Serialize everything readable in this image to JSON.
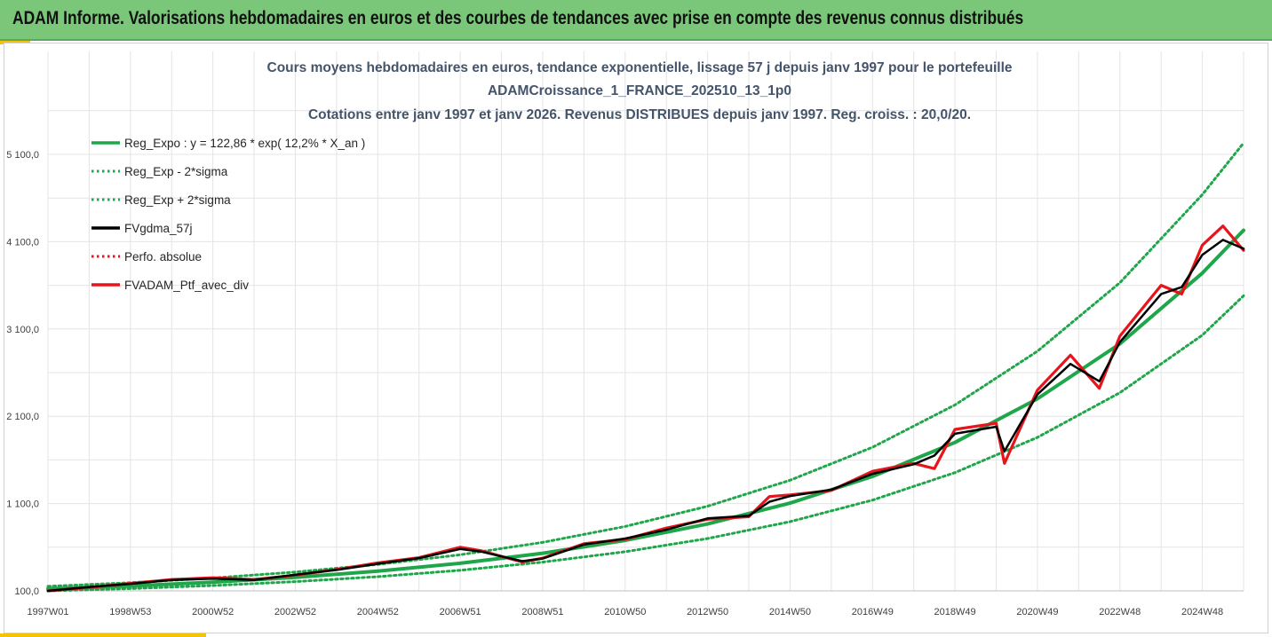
{
  "banner": {
    "title": "ADAM Informe. Valorisations hebdomadaires en euros et des courbes de tendances avec prise en compte des revenus connus distribués"
  },
  "colors": {
    "banner_bg": "#7ac77a",
    "accent": "#f5c400",
    "title_text": "#44546a",
    "trend": "#1fa64a",
    "smoothed": "#000000",
    "portfolio": "#e8141c"
  },
  "chart_data": {
    "type": "line",
    "title_lines": [
      "Cours moyens hebdomadaires  en euros, tendance exponentielle, lissage 57 j depuis janv 1997 pour le portefeuille",
      "ADAMCroissance_1_FRANCE_202510_13_1p0",
      "Cotations entre janv 1997 et janv 2026. Revenus DISTRIBUES depuis janv 1997. Reg. croiss. : 20,0/20."
    ],
    "y_ticks": [
      "100,0",
      "1 100,0",
      "2 100,0",
      "3 100,0",
      "4 100,0",
      "5 100,0"
    ],
    "y_tick_values": [
      100,
      1100,
      2100,
      3100,
      4100,
      5100
    ],
    "ylim": [
      100,
      5600
    ],
    "x_ticks": [
      "1997W01",
      "1998W53",
      "2000W52",
      "2002W52",
      "2004W52",
      "2006W51",
      "2008W51",
      "2010W50",
      "2012W50",
      "2014W50",
      "2016W49",
      "2018W49",
      "2020W49",
      "2022W48",
      "2024W48"
    ],
    "x_range_years": [
      1997.0,
      2026.0
    ],
    "grid": "vertical and horizontal",
    "legend_placement": "top-left",
    "legend": [
      {
        "label": "Reg_Expo : y = 122,86 * exp( 12,2% *  X_an )",
        "color": "#1fa64a",
        "style": "solid"
      },
      {
        "label": "Reg_Exp - 2*sigma",
        "color": "#1fa64a",
        "style": "dotted"
      },
      {
        "label": "Reg_Exp + 2*sigma",
        "color": "#1fa64a",
        "style": "dotted"
      },
      {
        "label": "FVgdma_57j",
        "color": "#000000",
        "style": "solid"
      },
      {
        "label": "Perfo. absolue",
        "color": "#e8141c",
        "style": "dotted"
      },
      {
        "label": "FVADAM_Ptf_avec_div",
        "color": "#e8141c",
        "style": "solid"
      }
    ],
    "series": [
      {
        "name": "Reg_Expo : y = 122,86 * exp( 12,2% *  X_an )",
        "x": [
          1997,
          1999,
          2001,
          2003,
          2005,
          2007,
          2009,
          2011,
          2013,
          2015,
          2017,
          2019,
          2021,
          2023,
          2025,
          2026
        ],
        "y": [
          123,
          156,
          200,
          255,
          326,
          416,
          531,
          678,
          866,
          1105,
          1411,
          1800,
          2300,
          2930,
          3740,
          4230
        ]
      },
      {
        "name": "Reg_Exp - 2*sigma",
        "x": [
          1997,
          1999,
          2001,
          2003,
          2005,
          2007,
          2009,
          2011,
          2013,
          2015,
          2017,
          2019,
          2021,
          2023,
          2025,
          2026
        ],
        "y": [
          100,
          126,
          161,
          206,
          263,
          336,
          429,
          548,
          700,
          893,
          1140,
          1455,
          1858,
          2370,
          3030,
          3480
        ]
      },
      {
        "name": "Reg_Exp + 2*sigma",
        "x": [
          1997,
          1999,
          2001,
          2003,
          2005,
          2007,
          2009,
          2011,
          2013,
          2015,
          2017,
          2019,
          2021,
          2023,
          2025,
          2026
        ],
        "y": [
          152,
          194,
          247,
          315,
          403,
          514,
          656,
          838,
          1070,
          1367,
          1745,
          2230,
          2845,
          3630,
          4640,
          5230
        ]
      },
      {
        "name": "FVgdma_57j",
        "x": [
          1997.0,
          1998.0,
          1999.0,
          2000.0,
          2001.0,
          2002.0,
          2003.0,
          2004.0,
          2005.0,
          2006.0,
          2007.0,
          2007.5,
          2008.5,
          2009.0,
          2010.0,
          2011.0,
          2012.0,
          2013.0,
          2014.0,
          2014.5,
          2015.0,
          2016.0,
          2017.0,
          2018.0,
          2018.5,
          2019.0,
          2020.0,
          2020.2,
          2021.0,
          2021.8,
          2022.5,
          2023.0,
          2024.0,
          2024.5,
          2025.0,
          2025.5,
          2026.0
        ],
        "y": [
          100,
          145,
          180,
          225,
          240,
          225,
          285,
          340,
          410,
          475,
          580,
          550,
          440,
          470,
          630,
          700,
          800,
          930,
          960,
          1120,
          1185,
          1260,
          1440,
          1550,
          1650,
          1900,
          1980,
          1700,
          2350,
          2700,
          2500,
          2950,
          3500,
          3580,
          3950,
          4120,
          4020
        ]
      },
      {
        "name": "FVADAM_Ptf_avec_div",
        "x": [
          1997.0,
          1998.0,
          1999.0,
          2000.0,
          2001.0,
          2002.0,
          2003.0,
          2004.0,
          2005.0,
          2006.0,
          2007.0,
          2007.5,
          2008.5,
          2009.0,
          2010.0,
          2011.0,
          2012.0,
          2013.0,
          2014.0,
          2014.5,
          2015.0,
          2016.0,
          2017.0,
          2018.0,
          2018.5,
          2019.0,
          2020.0,
          2020.2,
          2021.0,
          2021.8,
          2022.5,
          2023.0,
          2024.0,
          2024.5,
          2025.0,
          2025.5,
          2026.0
        ],
        "y": [
          100,
          140,
          185,
          230,
          250,
          230,
          280,
          345,
          420,
          480,
          600,
          560,
          430,
          475,
          640,
          690,
          820,
          920,
          950,
          1180,
          1200,
          1250,
          1470,
          1560,
          1500,
          1950,
          2020,
          1560,
          2400,
          2800,
          2420,
          3020,
          3600,
          3500,
          4060,
          4280,
          4000
        ]
      }
    ]
  }
}
